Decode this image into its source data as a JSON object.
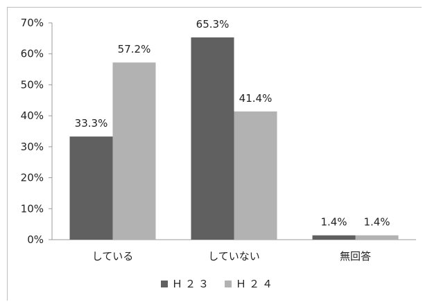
{
  "chart_data": {
    "type": "bar",
    "categories": [
      "している",
      "していない",
      "無回答"
    ],
    "series": [
      {
        "name": "Ｈ２３",
        "values": [
          33.3,
          65.3,
          1.4
        ],
        "labels": [
          "33.3%",
          "65.3%",
          "1.4%"
        ],
        "color": "#606060"
      },
      {
        "name": "Ｈ２４",
        "values": [
          57.2,
          41.4,
          1.4
        ],
        "labels": [
          "57.2%",
          "41.4%",
          "1.4%"
        ],
        "color": "#b2b2b2"
      }
    ],
    "yticks": [
      "0%",
      "10%",
      "20%",
      "30%",
      "40%",
      "50%",
      "60%",
      "70%"
    ],
    "ylim": [
      0,
      70
    ],
    "grid": false,
    "legend_position": "bottom",
    "title": "",
    "xlabel": "",
    "ylabel": ""
  }
}
